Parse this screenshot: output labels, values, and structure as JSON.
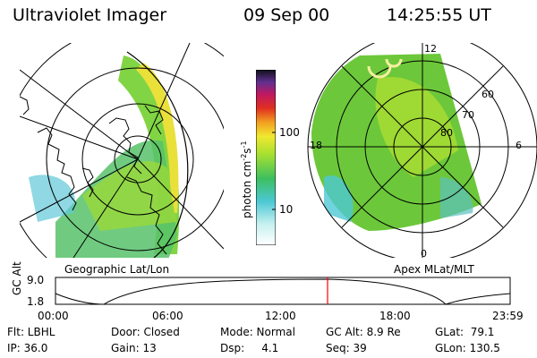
{
  "header": {
    "title": "Ultraviolet Imager",
    "date": "09 Sep 00",
    "time": "14:25:55 UT"
  },
  "left_panel": {
    "caption": "Geographic Lat/Lon"
  },
  "right_panel": {
    "caption": "Apex MLat/MLT",
    "lat_labels": [
      "60",
      "70",
      "80"
    ],
    "mlt_labels": [
      "12",
      "18",
      "6",
      "0"
    ]
  },
  "colorbar": {
    "unit_label": "photon cm",
    "unit_exp1": "-2",
    "unit_mid": "s",
    "unit_exp2": "-1",
    "ticks": [
      "100",
      "10"
    ]
  },
  "altitude_plot": {
    "ylabel": "GC Alt",
    "y_ticks": [
      "9.0",
      "1.8"
    ],
    "x_ticks": [
      "00:00",
      "06:00",
      "12:00",
      "18:00",
      "23:59"
    ],
    "marker_color": "#ff0000"
  },
  "status": {
    "filter": "Flt: LBHL",
    "ip": "IP: 36.0",
    "door": "Door: Closed",
    "gain": "Gain: 13",
    "mode": "Mode: Normal",
    "dsp": "Dsp:     4.1",
    "gc_alt": "GC Alt: 8.9 Re",
    "seq": "Seq: 39",
    "glat": "GLat:  79.1",
    "glon": "GLon: 130.5"
  }
}
